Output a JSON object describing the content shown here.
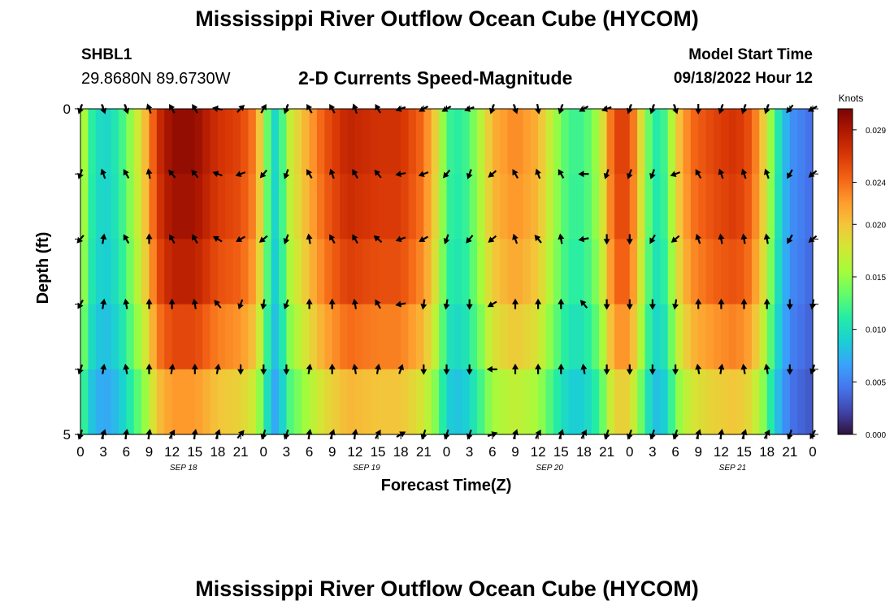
{
  "header": {
    "title": "Mississippi River Outflow Ocean Cube (HYCOM)",
    "station": "SHBL1",
    "coordinates": "29.8680N  89.6730W",
    "subtitle": "2-D Currents Speed-Magnitude",
    "model_start_label": "Model Start Time",
    "model_start_value": "09/18/2022 Hour 12"
  },
  "footer": {
    "title": "Mississippi River Outflow Ocean Cube (HYCOM)"
  },
  "colors": {
    "colormap": [
      "#30123b",
      "#4145ab",
      "#4675ed",
      "#39a2fc",
      "#1bcfd4",
      "#24eca6",
      "#61fc6c",
      "#a4fc3b",
      "#d1e834",
      "#f3c63a",
      "#fe9b2d",
      "#f36315",
      "#d93806",
      "#b11901",
      "#7a0403"
    ]
  },
  "chart_data": {
    "type": "heatmap",
    "title": "2-D Currents Speed-Magnitude",
    "xlabel": "Forecast Time(Z)",
    "ylabel": "Depth (ft)",
    "ylim": [
      0,
      5
    ],
    "y_ticks": [
      "0",
      "5"
    ],
    "x_ticks": [
      "0",
      "3",
      "6",
      "9",
      "12",
      "15",
      "18",
      "21",
      "0",
      "3",
      "6",
      "9",
      "12",
      "15",
      "18",
      "21",
      "0",
      "3",
      "6",
      "9",
      "12",
      "15",
      "18",
      "21",
      "0",
      "3",
      "6",
      "9",
      "12",
      "15",
      "18",
      "21",
      "0"
    ],
    "date_labels": [
      "SEP 18",
      "SEP 19",
      "SEP 20",
      "SEP 21"
    ],
    "colorbar": {
      "title": "Knots",
      "ticks": [
        "0.029",
        "0.024",
        "0.020",
        "0.015",
        "0.010",
        "0.005",
        "0.000"
      ],
      "range": [
        0.0,
        0.031
      ]
    },
    "depth_layers": 5,
    "time_steps_hours": 96,
    "speed_profile_knots": [
      {
        "hour": 0,
        "speed": 0.019
      },
      {
        "hour": 1,
        "speed": 0.012
      },
      {
        "hour": 3,
        "speed": 0.009
      },
      {
        "hour": 5,
        "speed": 0.011
      },
      {
        "hour": 7,
        "speed": 0.016
      },
      {
        "hour": 9,
        "speed": 0.022
      },
      {
        "hour": 10,
        "speed": 0.027
      },
      {
        "hour": 12,
        "speed": 0.03
      },
      {
        "hour": 15,
        "speed": 0.03
      },
      {
        "hour": 18,
        "speed": 0.027
      },
      {
        "hour": 21,
        "speed": 0.026
      },
      {
        "hour": 23,
        "speed": 0.023
      },
      {
        "hour": 24,
        "speed": 0.017
      },
      {
        "hour": 25,
        "speed": 0.01
      },
      {
        "hour": 26,
        "speed": 0.009
      },
      {
        "hour": 27,
        "speed": 0.016
      },
      {
        "hour": 29,
        "speed": 0.02
      },
      {
        "hour": 32,
        "speed": 0.025
      },
      {
        "hour": 35,
        "speed": 0.028
      },
      {
        "hour": 39,
        "speed": 0.027
      },
      {
        "hour": 42,
        "speed": 0.027
      },
      {
        "hour": 45,
        "speed": 0.024
      },
      {
        "hour": 47,
        "speed": 0.018
      },
      {
        "hour": 48,
        "speed": 0.012
      },
      {
        "hour": 50,
        "speed": 0.011
      },
      {
        "hour": 52,
        "speed": 0.015
      },
      {
        "hour": 54,
        "speed": 0.021
      },
      {
        "hour": 57,
        "speed": 0.023
      },
      {
        "hour": 60,
        "speed": 0.021
      },
      {
        "hour": 62,
        "speed": 0.016
      },
      {
        "hour": 64,
        "speed": 0.012
      },
      {
        "hour": 66,
        "speed": 0.012
      },
      {
        "hour": 68,
        "speed": 0.016
      },
      {
        "hour": 70,
        "speed": 0.026
      },
      {
        "hour": 72,
        "speed": 0.026
      },
      {
        "hour": 74,
        "speed": 0.016
      },
      {
        "hour": 75,
        "speed": 0.011
      },
      {
        "hour": 76,
        "speed": 0.011
      },
      {
        "hour": 77,
        "speed": 0.013
      },
      {
        "hour": 78,
        "speed": 0.019
      },
      {
        "hour": 80,
        "speed": 0.024
      },
      {
        "hour": 83,
        "speed": 0.026
      },
      {
        "hour": 86,
        "speed": 0.027
      },
      {
        "hour": 88,
        "speed": 0.025
      },
      {
        "hour": 90,
        "speed": 0.018
      },
      {
        "hour": 91,
        "speed": 0.012
      },
      {
        "hour": 93,
        "speed": 0.006
      },
      {
        "hour": 96,
        "speed": 0.004
      }
    ],
    "depth_factors": [
      1.0,
      0.98,
      0.94,
      0.86,
      0.74
    ],
    "vector_times_hours": [
      0,
      3,
      6,
      9,
      12,
      15,
      18,
      21,
      24,
      27,
      30,
      33,
      36,
      39,
      42,
      45,
      48,
      51,
      54,
      57,
      60,
      63,
      66,
      69,
      72,
      75,
      78,
      81,
      84,
      87,
      90,
      93,
      96
    ],
    "vector_directions_deg": [
      [
        200,
        160,
        160,
        340,
        330,
        330,
        280,
        45,
        30,
        200,
        330,
        330,
        340,
        330,
        250,
        240,
        240,
        250,
        200,
        160,
        170,
        200,
        240,
        250,
        200,
        200,
        160,
        180,
        200,
        200,
        200,
        220,
        240
      ],
      [
        200,
        340,
        330,
        350,
        320,
        320,
        290,
        250,
        220,
        200,
        330,
        340,
        330,
        320,
        260,
        250,
        220,
        200,
        230,
        330,
        340,
        330,
        270,
        200,
        200,
        200,
        250,
        330,
        340,
        340,
        340,
        210,
        230
      ],
      [
        220,
        10,
        330,
        0,
        330,
        330,
        300,
        240,
        230,
        200,
        350,
        330,
        330,
        310,
        250,
        240,
        200,
        220,
        230,
        340,
        320,
        350,
        260,
        180,
        180,
        210,
        230,
        340,
        350,
        350,
        350,
        210,
        230
      ],
      [
        210,
        10,
        350,
        0,
        0,
        350,
        320,
        200,
        190,
        200,
        0,
        0,
        350,
        330,
        260,
        190,
        190,
        180,
        240,
        0,
        0,
        0,
        320,
        180,
        180,
        180,
        190,
        0,
        0,
        0,
        0,
        180,
        190
      ],
      [
        200,
        10,
        350,
        0,
        10,
        0,
        10,
        180,
        180,
        180,
        10,
        0,
        350,
        10,
        20,
        180,
        180,
        180,
        270,
        0,
        0,
        0,
        350,
        180,
        180,
        180,
        180,
        350,
        10,
        350,
        350,
        180,
        200
      ],
      [
        200,
        20,
        10,
        10,
        30,
        10,
        20,
        40,
        200,
        200,
        10,
        20,
        10,
        30,
        60,
        200,
        200,
        200,
        70,
        20,
        30,
        20,
        30,
        200,
        200,
        200,
        200,
        20,
        10,
        20,
        30,
        200,
        210
      ]
    ]
  }
}
